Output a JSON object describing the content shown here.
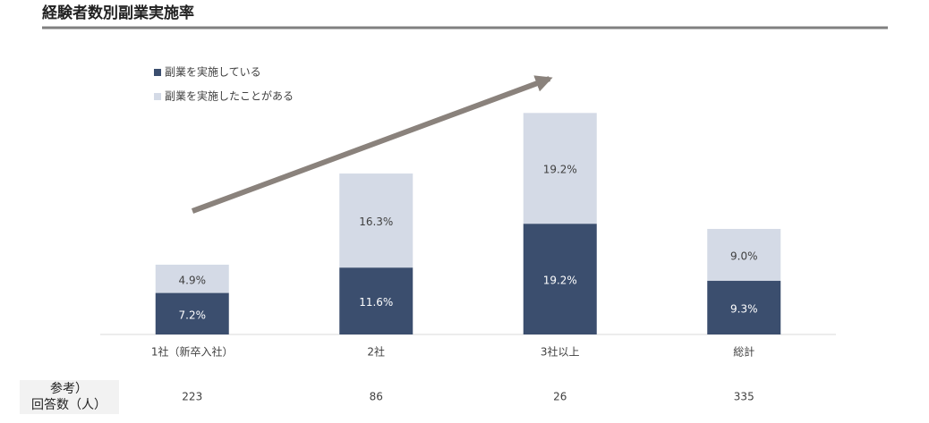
{
  "chart_data": {
    "type": "bar",
    "stacked": true,
    "title": "経験者数別副業実施率",
    "categories": [
      "1社（新卒入社）",
      "2社",
      "3社以上",
      "総計"
    ],
    "series": [
      {
        "name": "副業を実施している",
        "color": "#3b4e6e",
        "label_color": "#ffffff",
        "values": [
          7.2,
          11.6,
          19.2,
          9.3
        ],
        "value_labels": [
          "7.2%",
          "11.6%",
          "19.2%",
          "9.3%"
        ]
      },
      {
        "name": "副業を実施したことがある",
        "color": "#d4dae6",
        "label_color": "#404040",
        "values": [
          4.9,
          16.3,
          19.2,
          9.0
        ],
        "value_labels": [
          "4.9%",
          "16.3%",
          "19.2%",
          "9.0%"
        ]
      }
    ],
    "legend": "top-left"
  },
  "reference": {
    "label_lines": [
      "参考）",
      "回答数（人）"
    ],
    "values": [
      223,
      86,
      26,
      335
    ]
  }
}
